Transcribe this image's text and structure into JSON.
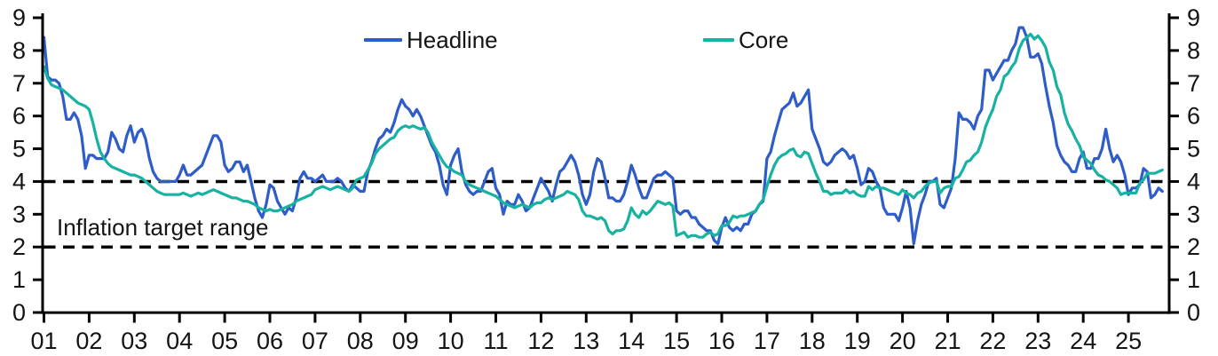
{
  "colors": {
    "headline": "#2e5cc9",
    "core": "#17b2a1",
    "axis": "#000000",
    "target_line": "#000000",
    "text": "#141414",
    "background": "#ffffff"
  },
  "legend": {
    "headline_label": "Headline",
    "core_label": "Core"
  },
  "annotation": {
    "target_range_label": "Inflation target range"
  },
  "chart_data": {
    "type": "line",
    "title": "",
    "xlabel": "",
    "ylabel": "",
    "ylim": [
      0,
      9
    ],
    "y_ticks": [
      0,
      1,
      2,
      3,
      4,
      5,
      6,
      7,
      8,
      9
    ],
    "y_axis_sides": [
      "left",
      "right"
    ],
    "grid": false,
    "legend_position": "top",
    "x_start_year": 2001,
    "x_frequency": "monthly",
    "x_tick_labels": [
      "01",
      "02",
      "03",
      "04",
      "05",
      "06",
      "07",
      "08",
      "09",
      "10",
      "11",
      "12",
      "13",
      "14",
      "15",
      "16",
      "17",
      "18",
      "19",
      "20",
      "21",
      "22",
      "23",
      "24",
      "25"
    ],
    "reference_lines": [
      {
        "y": 4,
        "style": "dashed",
        "label": ""
      },
      {
        "y": 2,
        "style": "dashed",
        "label": "Inflation target range"
      }
    ],
    "series": [
      {
        "name": "Headline",
        "color": "#2e5cc9",
        "values": [
          8.4,
          7.2,
          7.1,
          7.1,
          7.0,
          6.6,
          5.9,
          5.9,
          6.1,
          5.9,
          5.4,
          4.4,
          4.8,
          4.8,
          4.7,
          4.7,
          4.7,
          4.9,
          5.5,
          5.3,
          5.0,
          4.9,
          5.4,
          5.7,
          5.2,
          5.5,
          5.6,
          5.3,
          4.7,
          4.3,
          4.1,
          4.0,
          4.0,
          4.0,
          4.0,
          4.0,
          4.2,
          4.5,
          4.2,
          4.2,
          4.3,
          4.4,
          4.5,
          4.8,
          5.1,
          5.4,
          5.4,
          5.2,
          4.5,
          4.3,
          4.4,
          4.6,
          4.6,
          4.3,
          4.5,
          4.0,
          3.5,
          3.1,
          2.9,
          3.3,
          3.9,
          3.8,
          3.4,
          3.2,
          3.0,
          3.2,
          3.1,
          3.5,
          4.1,
          4.3,
          4.1,
          4.1,
          4.0,
          4.1,
          4.2,
          4.0,
          4.0,
          4.0,
          4.1,
          4.0,
          3.8,
          3.7,
          3.9,
          3.8,
          3.7,
          3.7,
          4.3,
          4.6,
          5.0,
          5.3,
          5.4,
          5.6,
          5.5,
          5.8,
          6.2,
          6.5,
          6.3,
          6.2,
          6.0,
          6.2,
          6.0,
          5.7,
          5.4,
          5.1,
          4.9,
          4.5,
          3.9,
          3.6,
          4.5,
          4.8,
          5.0,
          4.3,
          3.9,
          3.7,
          3.6,
          3.7,
          3.7,
          4.0,
          4.3,
          4.4,
          3.8,
          3.6,
          3.0,
          3.4,
          3.3,
          3.3,
          3.6,
          3.4,
          3.1,
          3.2,
          3.5,
          3.8,
          4.1,
          3.9,
          3.7,
          3.4,
          3.9,
          4.3,
          4.4,
          4.6,
          4.8,
          4.6,
          4.2,
          3.6,
          3.3,
          3.6,
          4.3,
          4.7,
          4.6,
          4.1,
          3.5,
          3.5,
          3.4,
          3.4,
          3.6,
          4.0,
          4.5,
          4.2,
          3.8,
          3.5,
          3.5,
          3.8,
          4.1,
          4.2,
          4.2,
          4.3,
          4.2,
          4.1,
          3.1,
          3.0,
          3.1,
          3.1,
          2.9,
          2.9,
          2.7,
          2.6,
          2.5,
          2.5,
          2.2,
          2.1,
          2.6,
          2.9,
          2.6,
          2.5,
          2.6,
          2.5,
          2.7,
          2.7,
          3.0,
          3.1,
          3.3,
          3.4,
          4.7,
          4.9,
          5.4,
          5.8,
          6.2,
          6.3,
          6.4,
          6.7,
          6.3,
          6.4,
          6.6,
          6.8,
          5.6,
          5.3,
          5.0,
          4.6,
          4.5,
          4.6,
          4.8,
          4.9,
          5.0,
          4.9,
          4.7,
          4.8,
          4.4,
          3.9,
          4.0,
          4.4,
          4.3,
          4.0,
          3.8,
          3.2,
          3.0,
          3.0,
          3.0,
          2.8,
          3.2,
          3.7,
          3.2,
          2.1,
          2.8,
          3.3,
          3.6,
          4.0,
          4.0,
          4.1,
          3.3,
          3.2,
          3.5,
          3.8,
          4.7,
          6.1,
          5.9,
          5.9,
          5.8,
          5.6,
          6.0,
          6.2,
          7.4,
          7.4,
          7.1,
          7.3,
          7.5,
          7.7,
          7.7,
          8.0,
          8.2,
          8.7,
          8.7,
          8.4,
          7.8,
          7.8,
          7.9,
          7.6,
          6.9,
          6.3,
          5.8,
          5.1,
          4.8,
          4.6,
          4.5,
          4.3,
          4.3,
          4.7,
          4.9,
          4.4,
          4.4,
          4.7,
          4.7,
          5.0,
          5.6,
          5.0,
          4.6,
          4.8,
          4.6,
          4.2,
          3.6,
          3.8,
          3.8,
          3.9,
          4.4,
          4.3,
          3.5,
          3.6,
          3.8,
          3.7
        ]
      },
      {
        "name": "Core",
        "color": "#17b2a1",
        "values": [
          7.5,
          7.15,
          6.95,
          6.9,
          6.85,
          6.8,
          6.7,
          6.6,
          6.5,
          6.4,
          6.35,
          6.3,
          6.2,
          5.8,
          5.3,
          4.9,
          4.7,
          4.55,
          4.45,
          4.4,
          4.35,
          4.3,
          4.25,
          4.2,
          4.2,
          4.15,
          4.1,
          4.0,
          3.9,
          3.8,
          3.7,
          3.65,
          3.6,
          3.6,
          3.6,
          3.6,
          3.6,
          3.65,
          3.6,
          3.55,
          3.6,
          3.65,
          3.6,
          3.65,
          3.7,
          3.75,
          3.7,
          3.65,
          3.6,
          3.55,
          3.5,
          3.5,
          3.45,
          3.4,
          3.4,
          3.35,
          3.3,
          3.2,
          3.15,
          3.1,
          3.15,
          3.1,
          3.1,
          3.15,
          3.2,
          3.25,
          3.3,
          3.4,
          3.45,
          3.5,
          3.55,
          3.6,
          3.75,
          3.8,
          3.85,
          3.8,
          3.75,
          3.8,
          3.85,
          3.8,
          3.75,
          3.7,
          3.8,
          4.05,
          4.1,
          4.15,
          4.35,
          4.55,
          4.85,
          5.0,
          5.1,
          5.2,
          5.3,
          5.35,
          5.55,
          5.65,
          5.7,
          5.65,
          5.7,
          5.65,
          5.6,
          5.65,
          5.5,
          5.2,
          5.0,
          4.8,
          4.6,
          4.45,
          4.4,
          4.3,
          4.25,
          4.2,
          4.0,
          3.9,
          3.85,
          3.8,
          3.75,
          3.7,
          3.65,
          3.6,
          3.55,
          3.45,
          3.35,
          3.3,
          3.25,
          3.2,
          3.25,
          3.3,
          3.25,
          3.2,
          3.3,
          3.35,
          3.35,
          3.45,
          3.5,
          3.45,
          3.5,
          3.55,
          3.6,
          3.7,
          3.65,
          3.6,
          3.45,
          3.1,
          2.95,
          2.95,
          2.9,
          2.85,
          2.9,
          2.8,
          2.5,
          2.4,
          2.5,
          2.5,
          2.55,
          2.8,
          3.2,
          3.0,
          2.9,
          3.1,
          3.0,
          3.1,
          3.25,
          3.4,
          3.35,
          3.3,
          3.35,
          3.25,
          2.35,
          2.4,
          2.45,
          2.3,
          2.35,
          2.35,
          2.3,
          2.3,
          2.4,
          2.45,
          2.35,
          2.4,
          2.65,
          2.65,
          2.75,
          2.95,
          2.9,
          2.95,
          2.95,
          3.0,
          3.05,
          3.1,
          3.3,
          3.45,
          3.85,
          4.2,
          4.5,
          4.7,
          4.8,
          4.85,
          4.95,
          5.0,
          4.8,
          4.75,
          4.9,
          4.85,
          4.55,
          4.25,
          4.0,
          3.7,
          3.7,
          3.6,
          3.65,
          3.65,
          3.65,
          3.75,
          3.65,
          3.7,
          3.6,
          3.55,
          3.55,
          3.85,
          3.75,
          3.85,
          3.8,
          3.8,
          3.75,
          3.7,
          3.65,
          3.6,
          3.75,
          3.65,
          3.6,
          3.5,
          3.65,
          3.7,
          3.85,
          3.95,
          4.0,
          4.0,
          3.65,
          3.8,
          3.85,
          3.85,
          4.1,
          4.15,
          4.35,
          4.6,
          4.65,
          4.8,
          4.9,
          5.2,
          5.65,
          5.95,
          6.2,
          6.6,
          6.8,
          7.2,
          7.3,
          7.5,
          7.65,
          8.05,
          8.3,
          8.4,
          8.5,
          8.35,
          8.45,
          8.3,
          8.1,
          7.65,
          7.4,
          6.9,
          6.65,
          6.1,
          5.75,
          5.55,
          5.3,
          5.1,
          4.75,
          4.65,
          4.55,
          4.35,
          4.2,
          4.15,
          4.05,
          4.0,
          3.9,
          3.8,
          3.6,
          3.65,
          3.65,
          3.65,
          3.65,
          3.95,
          4.05,
          4.25,
          4.25,
          4.25,
          4.3,
          4.35
        ]
      }
    ]
  }
}
